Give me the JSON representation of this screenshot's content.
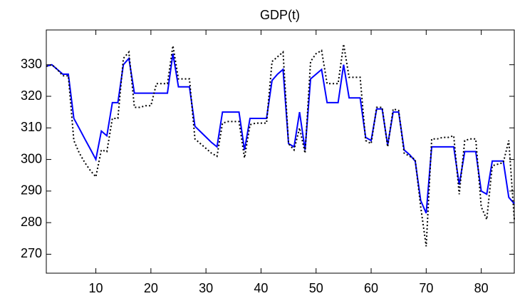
{
  "chart_data": {
    "type": "line",
    "title": "GDP(t)",
    "x": [
      1,
      2,
      3,
      4,
      5,
      6,
      7,
      8,
      9,
      10,
      11,
      12,
      13,
      14,
      15,
      16,
      17,
      18,
      19,
      20,
      21,
      22,
      23,
      24,
      25,
      26,
      27,
      28,
      29,
      30,
      31,
      32,
      33,
      34,
      35,
      36,
      37,
      38,
      39,
      40,
      41,
      42,
      43,
      44,
      45,
      46,
      47,
      48,
      49,
      50,
      51,
      52,
      53,
      54,
      55,
      56,
      57,
      58,
      59,
      60,
      61,
      62,
      63,
      64,
      65,
      66,
      67,
      68,
      69,
      70,
      71,
      72,
      73,
      74,
      75,
      76,
      77,
      78,
      79,
      80,
      81,
      82,
      83,
      84,
      85,
      86
    ],
    "series": [
      {
        "color": "#0000ff",
        "style": "solid",
        "values": [
          329.5,
          330,
          328.5,
          327,
          327,
          313,
          309.8,
          306.5,
          303.3,
          300,
          309,
          307.5,
          318,
          318,
          330,
          332,
          321,
          321,
          321,
          321,
          321,
          321,
          321,
          333.5,
          323,
          323,
          323,
          310.5,
          308.8,
          307.1,
          305.4,
          304,
          315,
          315,
          315,
          315,
          303,
          313,
          313,
          313,
          313,
          325,
          327,
          328.5,
          305,
          304,
          315,
          303,
          325.5,
          327,
          328.5,
          318,
          318,
          318,
          330,
          319.5,
          319.5,
          319.5,
          307,
          306,
          316,
          316,
          304.5,
          315,
          315,
          303,
          301.5,
          299.5,
          287,
          283,
          304,
          304,
          304,
          304,
          304,
          292,
          302.5,
          302.5,
          302.5,
          290,
          289,
          299.5,
          299.5,
          299.5,
          288,
          286
        ]
      },
      {
        "color": "#000000",
        "style": "dotted",
        "values": [
          329.5,
          330,
          328.5,
          326.5,
          326.5,
          306,
          302,
          299,
          296.5,
          294.5,
          303,
          302.5,
          313,
          313,
          332,
          334,
          316.5,
          316.5,
          317,
          317,
          324,
          324,
          324,
          336,
          325.5,
          325.5,
          325.5,
          306.5,
          305,
          303.5,
          302,
          301,
          311.5,
          312,
          312,
          312,
          300.5,
          311,
          311.5,
          311.5,
          311.5,
          331,
          332.5,
          334,
          305,
          303,
          310,
          302,
          331,
          333.5,
          334.5,
          324,
          324,
          324,
          336.5,
          326,
          326,
          326,
          306,
          305,
          316.5,
          316.5,
          304,
          316,
          315.5,
          302,
          301,
          300,
          285,
          272.5,
          306.5,
          306.5,
          307,
          307,
          307.5,
          289,
          306,
          306.5,
          306.5,
          285,
          281,
          298,
          298.5,
          299,
          306,
          281
        ]
      }
    ],
    "xlim": [
      1,
      86
    ],
    "ylim": [
      264,
      341
    ],
    "xticks": [
      10,
      20,
      30,
      40,
      50,
      60,
      70,
      80
    ],
    "yticks": [
      270,
      280,
      290,
      300,
      310,
      320,
      330
    ],
    "grid": false
  }
}
